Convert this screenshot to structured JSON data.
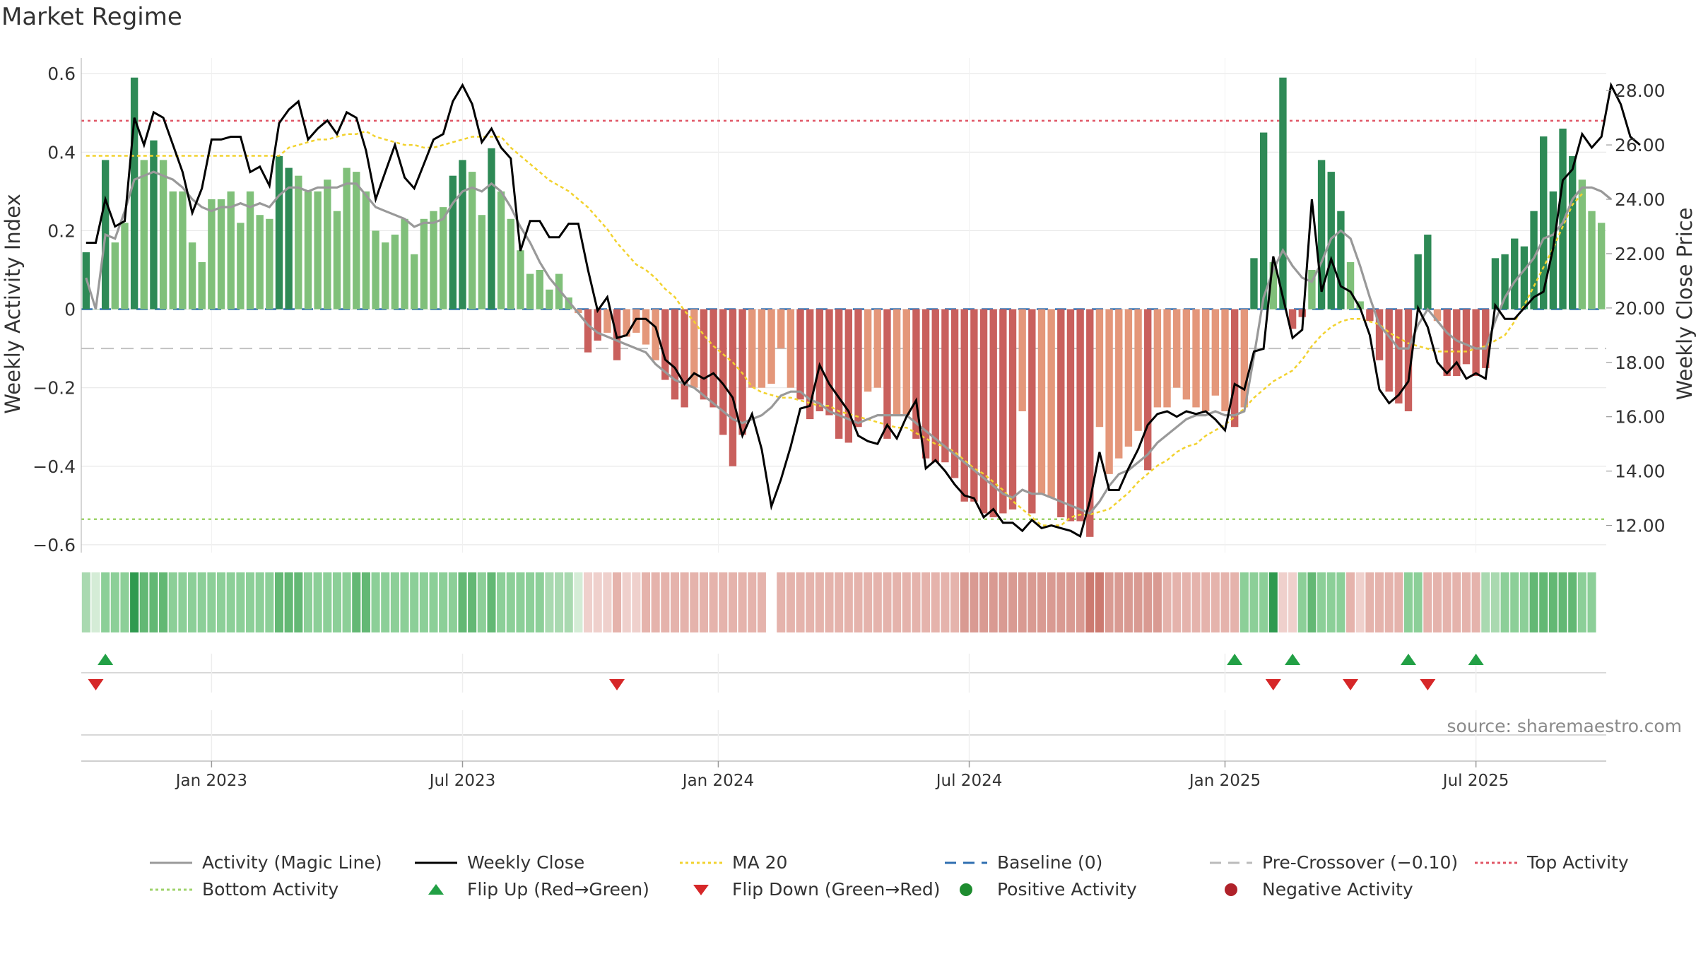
{
  "header": {
    "title": "Market Regime"
  },
  "footer": {
    "source": "source: sharemaestro.com"
  },
  "legend": {
    "row1": [
      {
        "label": "Activity (Magic Line)",
        "kind": "line",
        "color": "#999999",
        "style": "solid"
      },
      {
        "label": "Weekly Close",
        "kind": "line",
        "color": "#000000",
        "style": "solid"
      },
      {
        "label": "MA 20",
        "kind": "line",
        "color": "#f2d22e",
        "style": "dotted"
      },
      {
        "label": "Baseline (0)",
        "kind": "line",
        "color": "#2f6fb0",
        "style": "dashed"
      },
      {
        "label": "Pre-Crossover (−0.10)",
        "kind": "line",
        "color": "#bbbbbb",
        "style": "dashed"
      },
      {
        "label": "Top Activity",
        "kind": "line",
        "color": "#e05565",
        "style": "dotted"
      }
    ],
    "row2": [
      {
        "label": "Bottom Activity",
        "kind": "line",
        "color": "#9ed36a",
        "style": "dotted"
      },
      {
        "label": "Flip Up (Red→Green)",
        "kind": "marker",
        "color": "#22a045",
        "shape": "triangle-up"
      },
      {
        "label": "Flip Down (Green→Red)",
        "kind": "marker",
        "color": "#d62728",
        "shape": "triangle-down"
      },
      {
        "label": "Positive Activity",
        "kind": "marker",
        "color": "#1e8c2f",
        "shape": "circle"
      },
      {
        "label": "Negative Activity",
        "kind": "marker",
        "color": "#b0222a",
        "shape": "circle"
      }
    ]
  },
  "chart_data": {
    "type": "bar",
    "title": "Market Regime",
    "xlabel": "",
    "ylabel": "Weekly Activity Index",
    "y2label": "Weekly Close Price",
    "ylim": [
      -0.62,
      0.64
    ],
    "y2lim": [
      11.0,
      29.2
    ],
    "yticks": [
      {
        "value": 0.6,
        "label": "0.6"
      },
      {
        "value": 0.4,
        "label": "0.4"
      },
      {
        "value": 0.2,
        "label": "0.2"
      },
      {
        "value": 0,
        "label": "0"
      },
      {
        "value": -0.2,
        "label": "−0.2"
      },
      {
        "value": -0.4,
        "label": "−0.4"
      },
      {
        "value": -0.6,
        "label": "−0.6"
      }
    ],
    "y2ticks": [
      "28.00",
      "26.00",
      "24.00",
      "22.00",
      "20.00",
      "18.00",
      "16.00",
      "14.00",
      "12.00"
    ],
    "xticks": [
      {
        "week": 13.5,
        "label": "Jan 2023"
      },
      {
        "week": 39.5,
        "label": "Jul 2023"
      },
      {
        "week": 66,
        "label": "Jan 2024"
      },
      {
        "week": 92,
        "label": "Jul 2024"
      },
      {
        "week": 118.5,
        "label": "Jan 2025"
      },
      {
        "week": 144.5,
        "label": "Jul 2025"
      }
    ],
    "grid": true,
    "reference_lines": {
      "baseline": 0,
      "pre_crossover": -0.1,
      "top_activity": 0.48,
      "bottom_activity": -0.535
    },
    "colors": {
      "pos_strong": "#2e8a56",
      "pos_light": "#80c07a",
      "neg_strong": "#c9605d",
      "neg_light": "#e4977a",
      "magic": "#999999",
      "close": "#000000",
      "ma20": "#f2d22e"
    },
    "activity": [
      0.145,
      0.0,
      0.38,
      0.17,
      0.22,
      0.59,
      0.38,
      0.43,
      0.38,
      0.3,
      0.3,
      0.17,
      0.12,
      0.28,
      0.28,
      0.3,
      0.22,
      0.3,
      0.24,
      0.23,
      0.39,
      0.36,
      0.34,
      0.3,
      0.3,
      0.33,
      0.25,
      0.36,
      0.35,
      0.3,
      0.2,
      0.17,
      0.19,
      0.23,
      0.14,
      0.23,
      0.25,
      0.26,
      0.34,
      0.38,
      0.35,
      0.24,
      0.41,
      0.3,
      0.23,
      0.15,
      0.09,
      0.1,
      0.05,
      0.09,
      0.03,
      -0.01,
      -0.11,
      -0.08,
      -0.06,
      -0.13,
      -0.07,
      -0.06,
      -0.09,
      -0.13,
      -0.18,
      -0.23,
      -0.25,
      -0.2,
      -0.23,
      -0.25,
      -0.32,
      -0.4,
      -0.32,
      -0.2,
      -0.2,
      -0.19,
      -0.1,
      -0.2,
      -0.23,
      -0.28,
      -0.26,
      -0.27,
      -0.33,
      -0.34,
      -0.3,
      -0.21,
      -0.2,
      -0.33,
      -0.27,
      -0.27,
      -0.33,
      -0.38,
      -0.39,
      -0.39,
      -0.43,
      -0.49,
      -0.49,
      -0.52,
      -0.53,
      -0.52,
      -0.51,
      -0.26,
      -0.52,
      -0.47,
      -0.48,
      -0.53,
      -0.54,
      -0.54,
      -0.58,
      -0.3,
      -0.42,
      -0.38,
      -0.35,
      -0.31,
      -0.41,
      -0.25,
      -0.25,
      -0.2,
      -0.23,
      -0.25,
      -0.26,
      -0.22,
      -0.26,
      -0.3,
      -0.25,
      0.13,
      0.45,
      0.12,
      0.59,
      -0.05,
      -0.02,
      0.1,
      0.38,
      0.35,
      0.25,
      0.12,
      0.02,
      -0.03,
      -0.13,
      -0.21,
      -0.24,
      -0.26,
      0.14,
      0.19,
      -0.03,
      -0.17,
      -0.17,
      -0.14,
      -0.17,
      -0.15,
      0.13,
      0.14,
      0.18,
      0.16,
      0.25,
      0.44,
      0.3,
      0.46,
      0.39,
      0.33,
      0.25,
      0.22
    ],
    "magic_line": [
      0.08,
      0.0,
      0.19,
      0.18,
      0.25,
      0.33,
      0.34,
      0.35,
      0.34,
      0.33,
      0.31,
      0.28,
      0.26,
      0.25,
      0.26,
      0.26,
      0.27,
      0.26,
      0.27,
      0.26,
      0.29,
      0.31,
      0.31,
      0.3,
      0.31,
      0.31,
      0.31,
      0.32,
      0.32,
      0.29,
      0.26,
      0.25,
      0.24,
      0.23,
      0.21,
      0.22,
      0.22,
      0.23,
      0.27,
      0.3,
      0.31,
      0.3,
      0.32,
      0.3,
      0.26,
      0.21,
      0.17,
      0.12,
      0.08,
      0.05,
      0.02,
      -0.01,
      -0.04,
      -0.06,
      -0.07,
      -0.08,
      -0.09,
      -0.1,
      -0.11,
      -0.14,
      -0.16,
      -0.18,
      -0.19,
      -0.2,
      -0.22,
      -0.24,
      -0.26,
      -0.28,
      -0.29,
      -0.28,
      -0.27,
      -0.25,
      -0.22,
      -0.21,
      -0.21,
      -0.23,
      -0.24,
      -0.26,
      -0.27,
      -0.28,
      -0.29,
      -0.28,
      -0.27,
      -0.27,
      -0.27,
      -0.27,
      -0.29,
      -0.31,
      -0.33,
      -0.35,
      -0.37,
      -0.39,
      -0.41,
      -0.43,
      -0.45,
      -0.47,
      -0.48,
      -0.46,
      -0.47,
      -0.47,
      -0.48,
      -0.49,
      -0.5,
      -0.51,
      -0.52,
      -0.49,
      -0.45,
      -0.42,
      -0.41,
      -0.39,
      -0.37,
      -0.34,
      -0.32,
      -0.3,
      -0.28,
      -0.27,
      -0.27,
      -0.26,
      -0.27,
      -0.27,
      -0.26,
      -0.12,
      0.03,
      0.1,
      0.15,
      0.11,
      0.08,
      0.07,
      0.12,
      0.18,
      0.2,
      0.18,
      0.11,
      0.03,
      -0.04,
      -0.07,
      -0.1,
      -0.1,
      -0.04,
      0.0,
      -0.03,
      -0.06,
      -0.08,
      -0.09,
      -0.1,
      -0.1,
      -0.03,
      0.03,
      0.07,
      0.1,
      0.13,
      0.18,
      0.19,
      0.22,
      0.28,
      0.31,
      0.31,
      0.3,
      0.28
    ],
    "weekly_close": [
      22.4,
      22.4,
      24.0,
      23.0,
      23.2,
      27.0,
      26.0,
      27.2,
      27.0,
      26.0,
      25.0,
      23.5,
      24.4,
      26.2,
      26.2,
      26.3,
      26.3,
      25.0,
      25.2,
      24.5,
      26.8,
      27.3,
      27.6,
      26.2,
      26.6,
      26.9,
      26.4,
      27.2,
      27.0,
      25.8,
      24.0,
      25.0,
      26.0,
      24.8,
      24.4,
      25.3,
      26.2,
      26.4,
      27.6,
      28.2,
      27.5,
      26.1,
      26.6,
      25.9,
      25.5,
      22.1,
      23.2,
      23.2,
      22.6,
      22.6,
      23.1,
      23.1,
      21.4,
      19.9,
      20.4,
      18.9,
      19.0,
      19.6,
      19.6,
      19.3,
      18.1,
      17.8,
      17.2,
      17.6,
      17.4,
      17.6,
      17.2,
      16.7,
      15.3,
      16.1,
      14.8,
      12.7,
      13.7,
      14.9,
      16.3,
      16.4,
      17.9,
      17.2,
      16.7,
      16.2,
      15.3,
      15.1,
      15.0,
      15.7,
      15.2,
      16.0,
      16.6,
      14.1,
      14.4,
      14.0,
      13.5,
      13.1,
      13.0,
      12.3,
      12.6,
      12.1,
      12.1,
      11.8,
      12.2,
      11.9,
      12.0,
      11.9,
      11.8,
      11.6,
      12.9,
      14.7,
      13.3,
      13.3,
      14.1,
      14.8,
      15.7,
      16.1,
      16.2,
      16.0,
      16.2,
      16.1,
      16.2,
      15.9,
      15.5,
      17.2,
      17.0,
      18.4,
      18.5,
      21.9,
      20.4,
      18.9,
      19.2,
      24.0,
      20.6,
      21.8,
      20.8,
      20.6,
      20.0,
      19.0,
      17.0,
      16.5,
      16.8,
      17.3,
      20.0,
      19.3,
      18.0,
      17.6,
      18.0,
      17.4,
      17.6,
      17.4,
      20.1,
      19.6,
      19.6,
      20.0,
      20.4,
      20.6,
      22.2,
      24.7,
      25.1,
      26.4,
      25.9,
      26.3,
      28.2,
      27.5,
      26.3,
      26.0
    ],
    "ma20": [
      25.6,
      25.6,
      25.6,
      25.6,
      25.6,
      25.6,
      25.6,
      25.6,
      25.6,
      25.6,
      25.6,
      25.6,
      25.6,
      25.6,
      25.6,
      25.6,
      25.6,
      25.6,
      25.6,
      25.6,
      25.6,
      25.9,
      26.0,
      26.1,
      26.2,
      26.2,
      26.3,
      26.4,
      26.4,
      26.5,
      26.3,
      26.2,
      26.1,
      26.0,
      26.0,
      25.9,
      25.9,
      26.0,
      26.1,
      26.2,
      26.3,
      26.3,
      26.3,
      26.3,
      25.9,
      25.6,
      25.3,
      25.0,
      24.7,
      24.5,
      24.3,
      24.0,
      23.7,
      23.3,
      22.9,
      22.4,
      22.0,
      21.6,
      21.4,
      21.1,
      20.7,
      20.4,
      19.9,
      19.5,
      19.0,
      18.6,
      18.3,
      18.0,
      17.6,
      17.1,
      16.9,
      16.8,
      16.7,
      16.7,
      16.6,
      16.5,
      16.4,
      16.4,
      16.2,
      16.1,
      16.0,
      15.9,
      15.8,
      15.7,
      15.6,
      15.6,
      15.4,
      15.2,
      15.0,
      14.9,
      14.7,
      14.4,
      14.1,
      13.9,
      13.6,
      13.3,
      12.9,
      12.6,
      12.3,
      12.0,
      12.0,
      12.0,
      12.3,
      12.4,
      12.4,
      12.5,
      12.6,
      12.9,
      13.2,
      13.6,
      13.9,
      14.2,
      14.4,
      14.7,
      14.9,
      15.0,
      15.3,
      15.5,
      15.7,
      16.0,
      16.3,
      16.7,
      17.0,
      17.3,
      17.5,
      17.7,
      18.1,
      18.6,
      19.0,
      19.3,
      19.5,
      19.6,
      19.6,
      19.5,
      19.4,
      19.1,
      18.9,
      18.7,
      18.6,
      18.5,
      18.4,
      18.4,
      18.4,
      18.4,
      18.5,
      18.6,
      18.8,
      19.0,
      19.5,
      20.1,
      20.8,
      21.5,
      22.2,
      23.0,
      23.8,
      24.2
    ],
    "regime_strip": [
      2,
      1,
      3,
      3,
      3,
      5,
      4,
      4,
      4,
      3,
      3,
      3,
      3,
      3,
      3,
      3,
      3,
      3,
      3,
      3,
      4,
      4,
      4,
      3,
      3,
      3,
      3,
      3,
      4,
      4,
      3,
      3,
      3,
      3,
      3,
      3,
      3,
      3,
      3,
      4,
      4,
      3,
      4,
      3,
      3,
      3,
      3,
      3,
      2,
      2,
      2,
      1,
      -1,
      -1,
      -1,
      -2,
      -1,
      -1,
      -2,
      -2,
      -2,
      -2,
      -2,
      -2,
      -2,
      -2,
      -2,
      -2,
      -2,
      -2,
      -2,
      0,
      -2,
      -2,
      -2,
      -2,
      -2,
      -2,
      -2,
      -2,
      -2,
      -2,
      -2,
      -2,
      -2,
      -2,
      -2,
      -2,
      -2,
      -2,
      -2,
      -3,
      -3,
      -3,
      -3,
      -3,
      -3,
      -3,
      -3,
      -3,
      -3,
      -3,
      -3,
      -3,
      -4,
      -4,
      -3,
      -3,
      -3,
      -3,
      -3,
      -3,
      -2,
      -2,
      -2,
      -2,
      -2,
      -2,
      -2,
      -2,
      3,
      3,
      3,
      5,
      -1,
      -1,
      3,
      4,
      3,
      3,
      3,
      -2,
      -1,
      -2,
      -2,
      -2,
      -2,
      3,
      3,
      -2,
      -2,
      -2,
      -2,
      -2,
      -2,
      2,
      2,
      3,
      3,
      3,
      4,
      4,
      4,
      4,
      4,
      3,
      3
    ],
    "flips_up": [
      2,
      119,
      125,
      137,
      144
    ],
    "flips_down": [
      1,
      55,
      123,
      131,
      139
    ]
  }
}
